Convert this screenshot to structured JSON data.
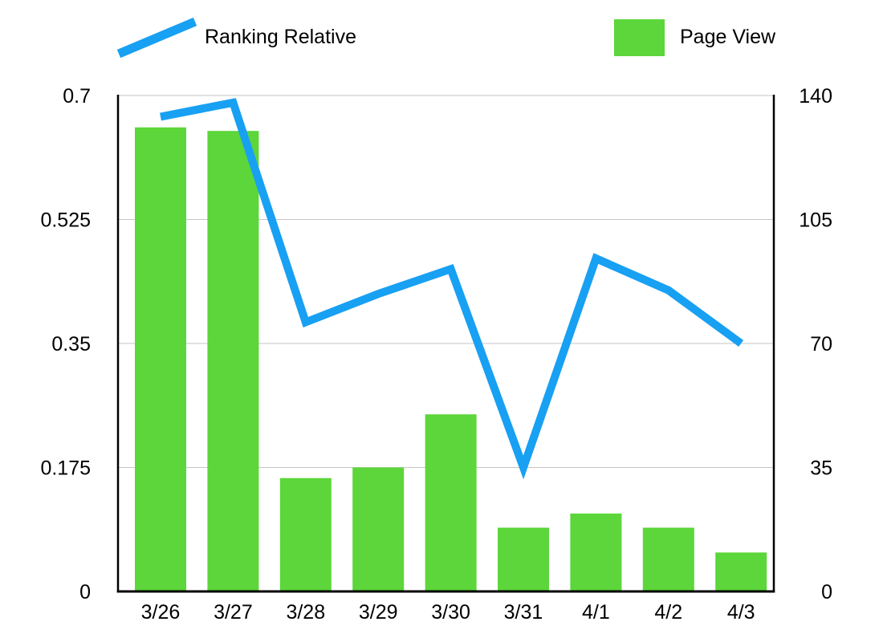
{
  "legend": {
    "line_label": "Ranking Relative",
    "bar_label": "Page View"
  },
  "chart_data": {
    "type": "combo-bar-line",
    "categories": [
      "3/26",
      "3/27",
      "3/28",
      "3/29",
      "3/30",
      "3/31",
      "4/1",
      "4/2",
      "4/3"
    ],
    "series": [
      {
        "name": "Ranking Relative",
        "type": "line",
        "axis": "left",
        "color": "#18A0F3",
        "values": [
          0.67,
          0.69,
          0.38,
          0.42,
          0.455,
          0.175,
          0.47,
          0.425,
          0.35
        ]
      },
      {
        "name": "Page View",
        "type": "bar",
        "axis": "right",
        "color": "#5CD63A",
        "values": [
          131,
          130,
          32,
          35,
          50,
          18,
          22,
          18,
          11
        ]
      }
    ],
    "axes": {
      "left": {
        "min": 0,
        "max": 0.7,
        "ticks": [
          0,
          0.175,
          0.35,
          0.525,
          0.7
        ],
        "tick_labels": [
          "0",
          "0.175",
          "0.35",
          "0.525",
          "0.7"
        ]
      },
      "right": {
        "min": 0,
        "max": 140,
        "ticks": [
          0,
          35,
          70,
          105,
          140
        ],
        "tick_labels": [
          "0",
          "35",
          "70",
          "105",
          "140"
        ]
      }
    },
    "grid": true,
    "legend_position": "top"
  },
  "colors": {
    "grid": "#c6c6c6",
    "axis": "#000000",
    "text": "#000000",
    "background": "#ffffff"
  }
}
